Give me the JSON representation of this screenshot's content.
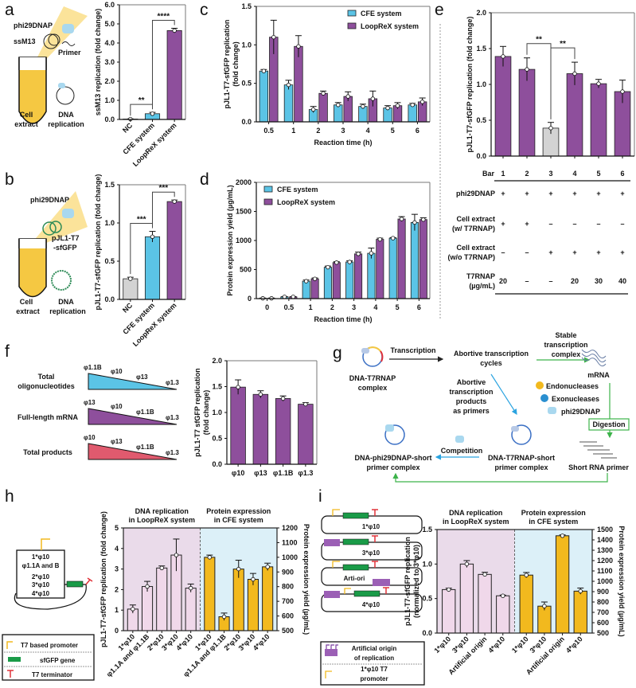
{
  "panel_labels": [
    "a",
    "b",
    "c",
    "d",
    "e",
    "f",
    "g",
    "h",
    "i"
  ],
  "diagram_a": {
    "enzyme": "phi29DNAP",
    "template": "ssM13",
    "primer": "Primer",
    "tube": "Cell\nextract",
    "tube_l1": "Cell",
    "tube_l2": "extract",
    "rep_l1": "DNA",
    "rep_l2": "replication"
  },
  "diagram_b": {
    "enzyme": "phi29DNAP",
    "plasmid_l1": "pJL1-T7",
    "plasmid_l2": "-sfGFP",
    "tube_l1": "Cell",
    "tube_l2": "extract",
    "rep_l1": "DNA",
    "rep_l2": "replication"
  },
  "table_e": {
    "bar_label": "Bar",
    "bars": [
      "1",
      "2",
      "3",
      "4",
      "5",
      "6"
    ],
    "rows": [
      {
        "label_l1": "phi29DNAP",
        "label_l2": "",
        "cells": [
          "+",
          "+",
          "+",
          "+",
          "+",
          "+"
        ]
      },
      {
        "label_l1": "Cell extract",
        "label_l2": "(w/ T7RNAP)",
        "cells": [
          "+",
          "+",
          "–",
          "–",
          "–",
          "–"
        ]
      },
      {
        "label_l1": "Cell extract",
        "label_l2": "(w/o T7RNAP)",
        "cells": [
          "–",
          "–",
          "+",
          "+",
          "+",
          "+"
        ]
      },
      {
        "label_l1": "T7RNAP",
        "label_l2": "(µg/mL)",
        "cells": [
          "20",
          "–",
          "–",
          "20",
          "30",
          "40"
        ]
      }
    ]
  },
  "diagram_f": [
    {
      "label_l1": "Total",
      "label_l2": "oligonucleotides",
      "order": [
        "φ1.1B",
        "φ10",
        "φ13",
        "φ1.3"
      ],
      "color": "#5bc4e6"
    },
    {
      "label_l1": "Full-length mRNA",
      "label_l2": "",
      "order": [
        "φ13",
        "φ10",
        "φ1.1B",
        "φ1.3"
      ],
      "color": "#8e4f9c"
    },
    {
      "label_l1": "Total products",
      "label_l2": "",
      "order": [
        "φ10",
        "φ13",
        "φ1.1B",
        "φ1.3"
      ],
      "color": "#e05a6e"
    }
  ],
  "diagram_g": {
    "dna_t7_l1": "DNA-T7RNAP",
    "dna_t7_l2": "complex",
    "transcription": "Transcription",
    "abortive_l1": "Abortive transcription",
    "abortive_l2": "cycles",
    "stable_l1": "Stable",
    "stable_l2": "transcription",
    "stable_l3": "complex",
    "mrna": "mRNA",
    "endo": "Endonucleases",
    "exo": "Exonucleases",
    "phi29": "phi29DNAP",
    "digestion": "Digestion",
    "short_primer": "Short RNA primer",
    "products_l1": "Abortive",
    "products_l2": "transcription",
    "products_l3": "products",
    "products_l4": "as primers",
    "t7_short_l1": "DNA-T7RNAP-short",
    "t7_short_l2": "primer complex",
    "competition": "Competition",
    "phi_short_l1": "DNA-phi29DNAP-short",
    "phi_short_l2": "primer complex"
  },
  "diagram_h": {
    "constructs": [
      "1*φ10",
      "φ1.1A and B",
      "2*φ10",
      "3*φ10",
      "4*φ10"
    ],
    "legend": [
      "T7 based promoter",
      "sfGFP gene",
      "T7 terminator"
    ]
  },
  "diagram_i": {
    "constructs": [
      "1*φ10",
      "3*φ10",
      "Arti-ori",
      "4*φ10"
    ],
    "legend_l1": "Artificial origin",
    "legend_l2": "of replication",
    "legend2_l1": "1*φ10 T7",
    "legend2_l2": "promoter"
  },
  "colors": {
    "cfe": "#5bc4e6",
    "loop": "#8e4f9c",
    "nc": "#d3d3d3",
    "gold": "#f2b91e",
    "pink_bg": "#eadbea",
    "blue_bg": "#dcf0f8",
    "pink_bar": "#f0d8ea"
  },
  "chart_data": [
    {
      "id": "a",
      "type": "bar",
      "categories": [
        "NC",
        "CFE system",
        "LoopReX system"
      ],
      "values": [
        0.02,
        0.3,
        4.65
      ],
      "errors": [
        0.01,
        0.07,
        0.12
      ],
      "bar_colors": [
        "#d3d3d3",
        "#5bc4e6",
        "#8e4f9c"
      ],
      "ylabel": "ssM13 replication (fold change)",
      "ylim": [
        0,
        6
      ],
      "yticks": [
        "0.0",
        "1.0",
        "2.0",
        "3.0",
        "4.0",
        "5.0",
        "6.0"
      ],
      "significance": [
        {
          "from": 0,
          "to": 1,
          "label": "**"
        },
        {
          "from": 1,
          "to": 2,
          "label": "****"
        }
      ]
    },
    {
      "id": "b",
      "type": "bar",
      "categories": [
        "NC",
        "CFE system",
        "LoopReX system"
      ],
      "values": [
        0.27,
        0.82,
        1.28
      ],
      "errors": [
        0.02,
        0.07,
        0.02
      ],
      "bar_colors": [
        "#d3d3d3",
        "#5bc4e6",
        "#8e4f9c"
      ],
      "ylabel": "pJL1-T7-sfGFP replication (fold change)",
      "ylim": [
        0,
        1.5
      ],
      "yticks": [
        "0.0",
        "0.5",
        "1.0",
        "1.5"
      ],
      "significance": [
        {
          "from": 0,
          "to": 1,
          "label": "***"
        },
        {
          "from": 1,
          "to": 2,
          "label": "***"
        }
      ]
    },
    {
      "id": "c",
      "type": "bar",
      "categories": [
        "0.5",
        "1",
        "2",
        "3",
        "4",
        "5",
        "6"
      ],
      "xlabel": "Reaction time (h)",
      "ylabel": "pJL1-T7-sfGFP replication",
      "ylabel2": "(fold change)",
      "ylim": [
        0,
        1.5
      ],
      "yticks": [
        "0.0",
        "0.5",
        "1.0",
        "1.5"
      ],
      "legend": "top-right",
      "series": [
        {
          "name": "CFE system",
          "color": "#5bc4e6",
          "values": [
            0.66,
            0.48,
            0.16,
            0.22,
            0.2,
            0.18,
            0.22
          ],
          "errors": [
            0.02,
            0.06,
            0.04,
            0.03,
            0.03,
            0.03,
            0.02
          ]
        },
        {
          "name": "LoopReX system",
          "color": "#8e4f9c",
          "values": [
            1.1,
            0.98,
            0.37,
            0.33,
            0.3,
            0.21,
            0.26
          ],
          "errors": [
            0.22,
            0.14,
            0.03,
            0.06,
            0.1,
            0.04,
            0.05
          ]
        }
      ]
    },
    {
      "id": "d",
      "type": "bar",
      "categories": [
        "0",
        "0.5",
        "1",
        "2",
        "3",
        "4",
        "5",
        "6"
      ],
      "xlabel": "Reaction time (h)",
      "ylabel": "Protein expression yield (µg/mL)",
      "ylim": [
        0,
        2000
      ],
      "yticks": [
        "0",
        "500",
        "1000",
        "1500",
        "2000"
      ],
      "legend": "top-left",
      "series": [
        {
          "name": "CFE system",
          "color": "#5bc4e6",
          "values": [
            5,
            30,
            300,
            540,
            630,
            780,
            1040,
            1310
          ],
          "errors": [
            5,
            5,
            20,
            20,
            20,
            90,
            10,
            140
          ]
        },
        {
          "name": "LoopReX system",
          "color": "#8e4f9c",
          "values": [
            5,
            30,
            340,
            620,
            770,
            1020,
            1370,
            1360
          ],
          "errors": [
            5,
            5,
            15,
            15,
            30,
            20,
            40,
            30
          ]
        }
      ]
    },
    {
      "id": "e",
      "type": "bar",
      "categories": [
        "1",
        "2",
        "3",
        "4",
        "5",
        "6"
      ],
      "values": [
        1.39,
        1.21,
        0.39,
        1.15,
        1.01,
        0.9
      ],
      "errors": [
        0.14,
        0.16,
        0.08,
        0.16,
        0.06,
        0.16
      ],
      "bar_colors": [
        "#8e4f9c",
        "#8e4f9c",
        "#d3d3d3",
        "#8e4f9c",
        "#8e4f9c",
        "#8e4f9c"
      ],
      "ylabel": "pJL1-T7-sfGFP replication (fold change)",
      "ylim": [
        0,
        2
      ],
      "yticks": [
        "0.0",
        "0.5",
        "1.0",
        "1.5",
        "2.0"
      ],
      "significance": [
        {
          "from": 1,
          "to": 2,
          "label": "**"
        },
        {
          "from": 2,
          "to": 3,
          "label": "**"
        }
      ]
    },
    {
      "id": "f",
      "type": "bar",
      "categories": [
        "φ10",
        "φ13",
        "φ1.1B",
        "φ1.3"
      ],
      "values": [
        1.49,
        1.35,
        1.27,
        1.16
      ],
      "errors": [
        0.14,
        0.07,
        0.05,
        0.03
      ],
      "bar_colors": [
        "#8e4f9c",
        "#8e4f9c",
        "#8e4f9c",
        "#8e4f9c"
      ],
      "ylabel": "pJL1-T7 sfGFP replication",
      "ylabel2": "(fold change)",
      "ylim": [
        0,
        2
      ],
      "yticks": [
        "0.0",
        "0.5",
        "1.0",
        "1.5",
        "2.0"
      ]
    },
    {
      "id": "h",
      "type": "bar",
      "title_left_l1": "DNA replication",
      "title_left_l2": "in LoopReX system",
      "title_right_l1": "Protein expression",
      "title_right_l2": "in CFE system",
      "ylabel": "pJL1-T7-sfGFP replication (fold change)",
      "ylabel_right": "Protein expression yield (µg/mL)",
      "left": {
        "categories": [
          "1*φ10",
          "φ1.1A and φ1.1B",
          "2*φ10",
          "3*φ10",
          "4*φ10"
        ],
        "values": [
          1.05,
          2.15,
          3.05,
          3.68,
          2.07
        ],
        "errors": [
          0.2,
          0.25,
          0.1,
          0.78,
          0.2
        ],
        "ylim": [
          0,
          5
        ],
        "yticks": [
          "0",
          "1",
          "2",
          "3",
          "4",
          "5"
        ]
      },
      "right": {
        "categories": [
          "1*φ10",
          "φ1.1A and φ1.1B",
          "2*φ10",
          "3*φ10",
          "4*φ10"
        ],
        "values": [
          1000,
          595,
          920,
          850,
          935
        ],
        "errors": [
          15,
          25,
          60,
          40,
          25
        ],
        "ylim": [
          500,
          1200
        ],
        "yticks": [
          "500",
          "600",
          "700",
          "800",
          "900",
          "1000",
          "1100",
          "1200"
        ]
      }
    },
    {
      "id": "i",
      "type": "bar",
      "title_left_l1": "DNA replication",
      "title_left_l2": "in LoopReX system",
      "title_right_l1": "Protein expression",
      "title_right_l2": "in CFE system",
      "ylabel": "pJL1-T7-sfGFP replication",
      "ylabel2": "(normalized to 3*φ10)",
      "ylabel_right": "Protein expression yield (µg/mL)",
      "left": {
        "categories": [
          "1*φ10",
          "3*φ10",
          "Artificial origin",
          "4*φ10"
        ],
        "values": [
          0.63,
          1.0,
          0.85,
          0.54
        ],
        "errors": [
          0.02,
          0.05,
          0.03,
          0.01
        ],
        "ylim": [
          0,
          1.5
        ],
        "yticks": [
          "0.0",
          "0.5",
          "1.0",
          "1.5"
        ]
      },
      "right": {
        "categories": [
          "1*φ10",
          "3*φ10",
          "Artificial origin",
          "4*φ10"
        ],
        "values": [
          1060,
          760,
          1440,
          905
        ],
        "errors": [
          25,
          40,
          8,
          30
        ],
        "ylim": [
          500,
          1500
        ],
        "yticks": [
          "500",
          "600",
          "700",
          "800",
          "900",
          "1000",
          "1100",
          "1200",
          "1300",
          "1400",
          "1500"
        ]
      }
    }
  ]
}
